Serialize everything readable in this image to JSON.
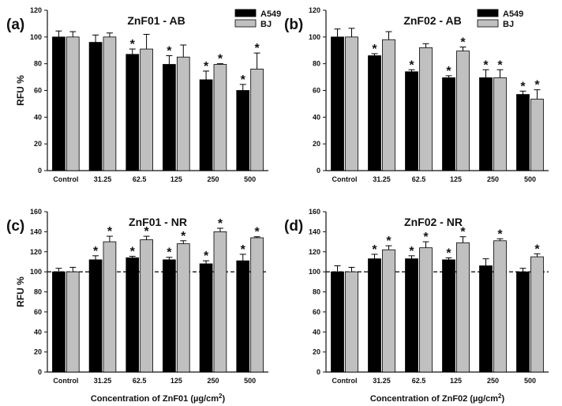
{
  "chart_data": [
    {
      "panel_label": "(a)",
      "type": "bar",
      "title": "ZnF01 - AB",
      "ylabel": "RFU %",
      "xlabel": "",
      "ylim": [
        0,
        120
      ],
      "yticks": [
        0,
        20,
        40,
        60,
        80,
        100,
        120
      ],
      "categories": [
        "Control",
        "31.25",
        "62.5",
        "125",
        "250",
        "500"
      ],
      "legend": true,
      "series": [
        {
          "name": "A549",
          "color": "#000000",
          "values": [
            100,
            96,
            87,
            79.5,
            68,
            60
          ],
          "errors": [
            4.5,
            5.5,
            4,
            6.5,
            6.5,
            4.5
          ],
          "significant": [
            false,
            false,
            true,
            true,
            true,
            true
          ]
        },
        {
          "name": "BJ",
          "color": "#c0c0c0",
          "values": [
            100,
            100,
            91,
            85,
            79.5,
            76
          ],
          "errors": [
            4,
            3,
            11,
            9,
            0.5,
            12
          ],
          "significant": [
            false,
            false,
            false,
            false,
            true,
            true
          ]
        }
      ]
    },
    {
      "panel_label": "(b)",
      "type": "bar",
      "title": "ZnF02 - AB",
      "ylabel": "",
      "xlabel": "",
      "ylim": [
        0,
        120
      ],
      "yticks": [
        0,
        20,
        40,
        60,
        80,
        100,
        120
      ],
      "categories": [
        "Control",
        "31.25",
        "62.5",
        "125",
        "250",
        "500"
      ],
      "legend": true,
      "series": [
        {
          "name": "A549",
          "color": "#000000",
          "values": [
            100,
            86,
            74,
            69.5,
            69.5,
            57
          ],
          "errors": [
            6,
            1.5,
            1.5,
            1.5,
            6,
            2.5
          ],
          "significant": [
            false,
            true,
            true,
            true,
            true,
            true
          ]
        },
        {
          "name": "BJ",
          "color": "#c0c0c0",
          "values": [
            100,
            98,
            92,
            89.5,
            69.5,
            53.5
          ],
          "errors": [
            6.5,
            6,
            3,
            3,
            6,
            7
          ],
          "significant": [
            false,
            false,
            false,
            true,
            true,
            true
          ]
        }
      ]
    },
    {
      "panel_label": "(c)",
      "type": "bar",
      "title": "ZnF01 - NR",
      "ylabel": "RFU %",
      "xlabel": "Concentration of ZnF01 (µg/cm²)",
      "ylim": [
        0,
        160
      ],
      "yticks": [
        0,
        20,
        40,
        60,
        80,
        100,
        120,
        140,
        160
      ],
      "categories": [
        "Control",
        "31.25",
        "62.5",
        "125",
        "250",
        "500"
      ],
      "legend": false,
      "reference_line": 100,
      "series": [
        {
          "name": "A549",
          "color": "#000000",
          "values": [
            100,
            112,
            114,
            112,
            108,
            111
          ],
          "errors": [
            3.5,
            4,
            1.5,
            2.5,
            3,
            6.5
          ],
          "significant": [
            false,
            true,
            true,
            true,
            true,
            true
          ]
        },
        {
          "name": "BJ",
          "color": "#c0c0c0",
          "values": [
            100,
            130,
            132,
            128,
            140,
            134
          ],
          "errors": [
            4.5,
            5.5,
            3.5,
            3,
            3.5,
            1
          ],
          "significant": [
            false,
            true,
            true,
            true,
            true,
            true
          ]
        }
      ]
    },
    {
      "panel_label": "(d)",
      "type": "bar",
      "title": "ZnF02 - NR",
      "ylabel": "",
      "xlabel": "Concentration of ZnF02 (µg/cm²)",
      "ylim": [
        0,
        160
      ],
      "yticks": [
        0,
        20,
        40,
        60,
        80,
        100,
        120,
        140,
        160
      ],
      "categories": [
        "Control",
        "31.25",
        "62.5",
        "125",
        "250",
        "500"
      ],
      "legend": false,
      "reference_line": 100,
      "series": [
        {
          "name": "A549",
          "color": "#000000",
          "values": [
            100,
            113,
            113,
            112,
            106,
            100
          ],
          "errors": [
            6,
            4.5,
            3,
            2,
            7,
            3.5
          ],
          "significant": [
            false,
            true,
            true,
            true,
            false,
            false
          ]
        },
        {
          "name": "BJ",
          "color": "#c0c0c0",
          "values": [
            100,
            122,
            124,
            129,
            131,
            115
          ],
          "errors": [
            4.5,
            4,
            6,
            6,
            2,
            3
          ],
          "significant": [
            false,
            true,
            true,
            true,
            true,
            true
          ]
        }
      ]
    }
  ],
  "significance_marker": "*",
  "colors": {
    "a549": "#000000",
    "bj": "#c0c0c0",
    "axis": "#111111",
    "background": "#ffffff"
  }
}
